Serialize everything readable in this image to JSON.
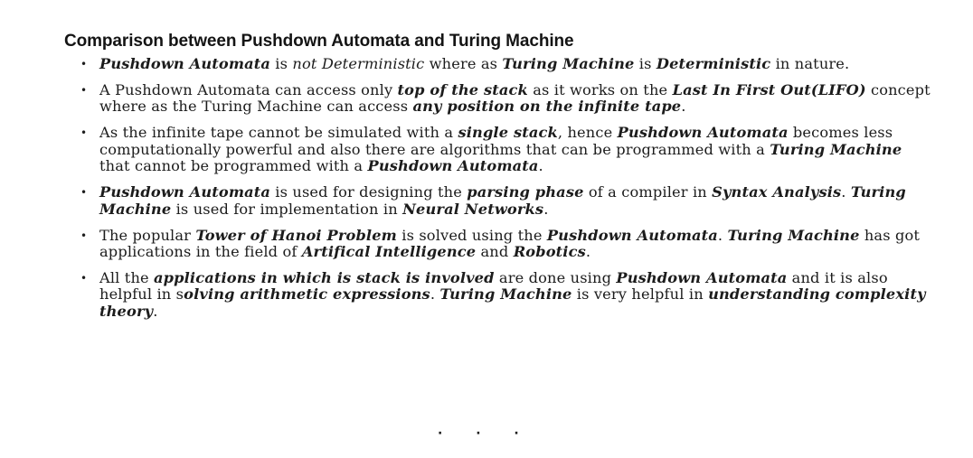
{
  "heading": "Comparison between Pushdown Automata and Turing Machine",
  "points": [
    [
      {
        "t": "Pushdown Automata",
        "s": "ei"
      },
      {
        "t": " is ",
        "s": "n"
      },
      {
        "t": "not Deterministic",
        "s": "i"
      },
      {
        "t": " where as ",
        "s": "n"
      },
      {
        "t": "Turing Machine",
        "s": "ei"
      },
      {
        "t": " is ",
        "s": "n"
      },
      {
        "t": "Deterministic",
        "s": "ei"
      },
      {
        "t": " in nature.",
        "s": "n"
      }
    ],
    [
      {
        "t": "A Pushdown Automata can access only ",
        "s": "n"
      },
      {
        "t": "top of the stack",
        "s": "ei"
      },
      {
        "t": " as it works on the ",
        "s": "n"
      },
      {
        "t": "Last In First Out(LIFO)",
        "s": "ei"
      },
      {
        "t": " concept where as the Turing Machine can access ",
        "s": "n"
      },
      {
        "t": "any position on the infinite tape",
        "s": "ei"
      },
      {
        "t": ".",
        "s": "n"
      }
    ],
    [
      {
        "t": "As the infinite tape cannot be simulated with a ",
        "s": "n"
      },
      {
        "t": "single stack",
        "s": "ei"
      },
      {
        "t": ", hence ",
        "s": "n"
      },
      {
        "t": "Pushdown Automata",
        "s": "ei"
      },
      {
        "t": " becomes less computationally powerful and also there are algorithms that can be programmed with a ",
        "s": "n"
      },
      {
        "t": "Turing Machine",
        "s": "ei"
      },
      {
        "t": " that cannot be programmed with a ",
        "s": "n"
      },
      {
        "t": "Pushdown Automata",
        "s": "ei"
      },
      {
        "t": ".",
        "s": "n"
      }
    ],
    [
      {
        "t": "Pushdown Automata",
        "s": "ei"
      },
      {
        "t": " is used for designing the ",
        "s": "n"
      },
      {
        "t": "parsing phase",
        "s": "ei"
      },
      {
        "t": " of a compiler in ",
        "s": "n"
      },
      {
        "t": "Syntax Analysis",
        "s": "ei"
      },
      {
        "t": ". ",
        "s": "n"
      },
      {
        "t": "Turing Machine",
        "s": "ei"
      },
      {
        "t": " is used for implementation in ",
        "s": "n"
      },
      {
        "t": "Neural Networks",
        "s": "ei"
      },
      {
        "t": ".",
        "s": "n"
      }
    ],
    [
      {
        "t": "The popular ",
        "s": "n"
      },
      {
        "t": "Tower of Hanoi Problem",
        "s": "ei"
      },
      {
        "t": " is solved using the ",
        "s": "n"
      },
      {
        "t": "Pushdown Automata",
        "s": "ei"
      },
      {
        "t": ". ",
        "s": "n"
      },
      {
        "t": "Turing Machine",
        "s": "ei"
      },
      {
        "t": " has got applications in the field of ",
        "s": "n"
      },
      {
        "t": "Artifical Intelligence",
        "s": "ei"
      },
      {
        "t": " and ",
        "s": "n"
      },
      {
        "t": "Robotics",
        "s": "ei"
      },
      {
        "t": ".",
        "s": "n"
      }
    ],
    [
      {
        "t": "All the ",
        "s": "n"
      },
      {
        "t": "applications in which is stack is involved",
        "s": "ei"
      },
      {
        "t": " are done using ",
        "s": "n"
      },
      {
        "t": "Pushdown Automata",
        "s": "ei"
      },
      {
        "t": " and it is also helpful in s",
        "s": "n"
      },
      {
        "t": "olving arithmetic expressions",
        "s": "ei"
      },
      {
        "t": ". ",
        "s": "n"
      },
      {
        "t": "Turing Machine",
        "s": "ei"
      },
      {
        "t": " is very helpful in ",
        "s": "n"
      },
      {
        "t": "understanding complexity theory",
        "s": "ei"
      },
      {
        "t": ".",
        "s": "n"
      }
    ]
  ],
  "bullet_glyph": "•",
  "footer_dots": "· · ·"
}
